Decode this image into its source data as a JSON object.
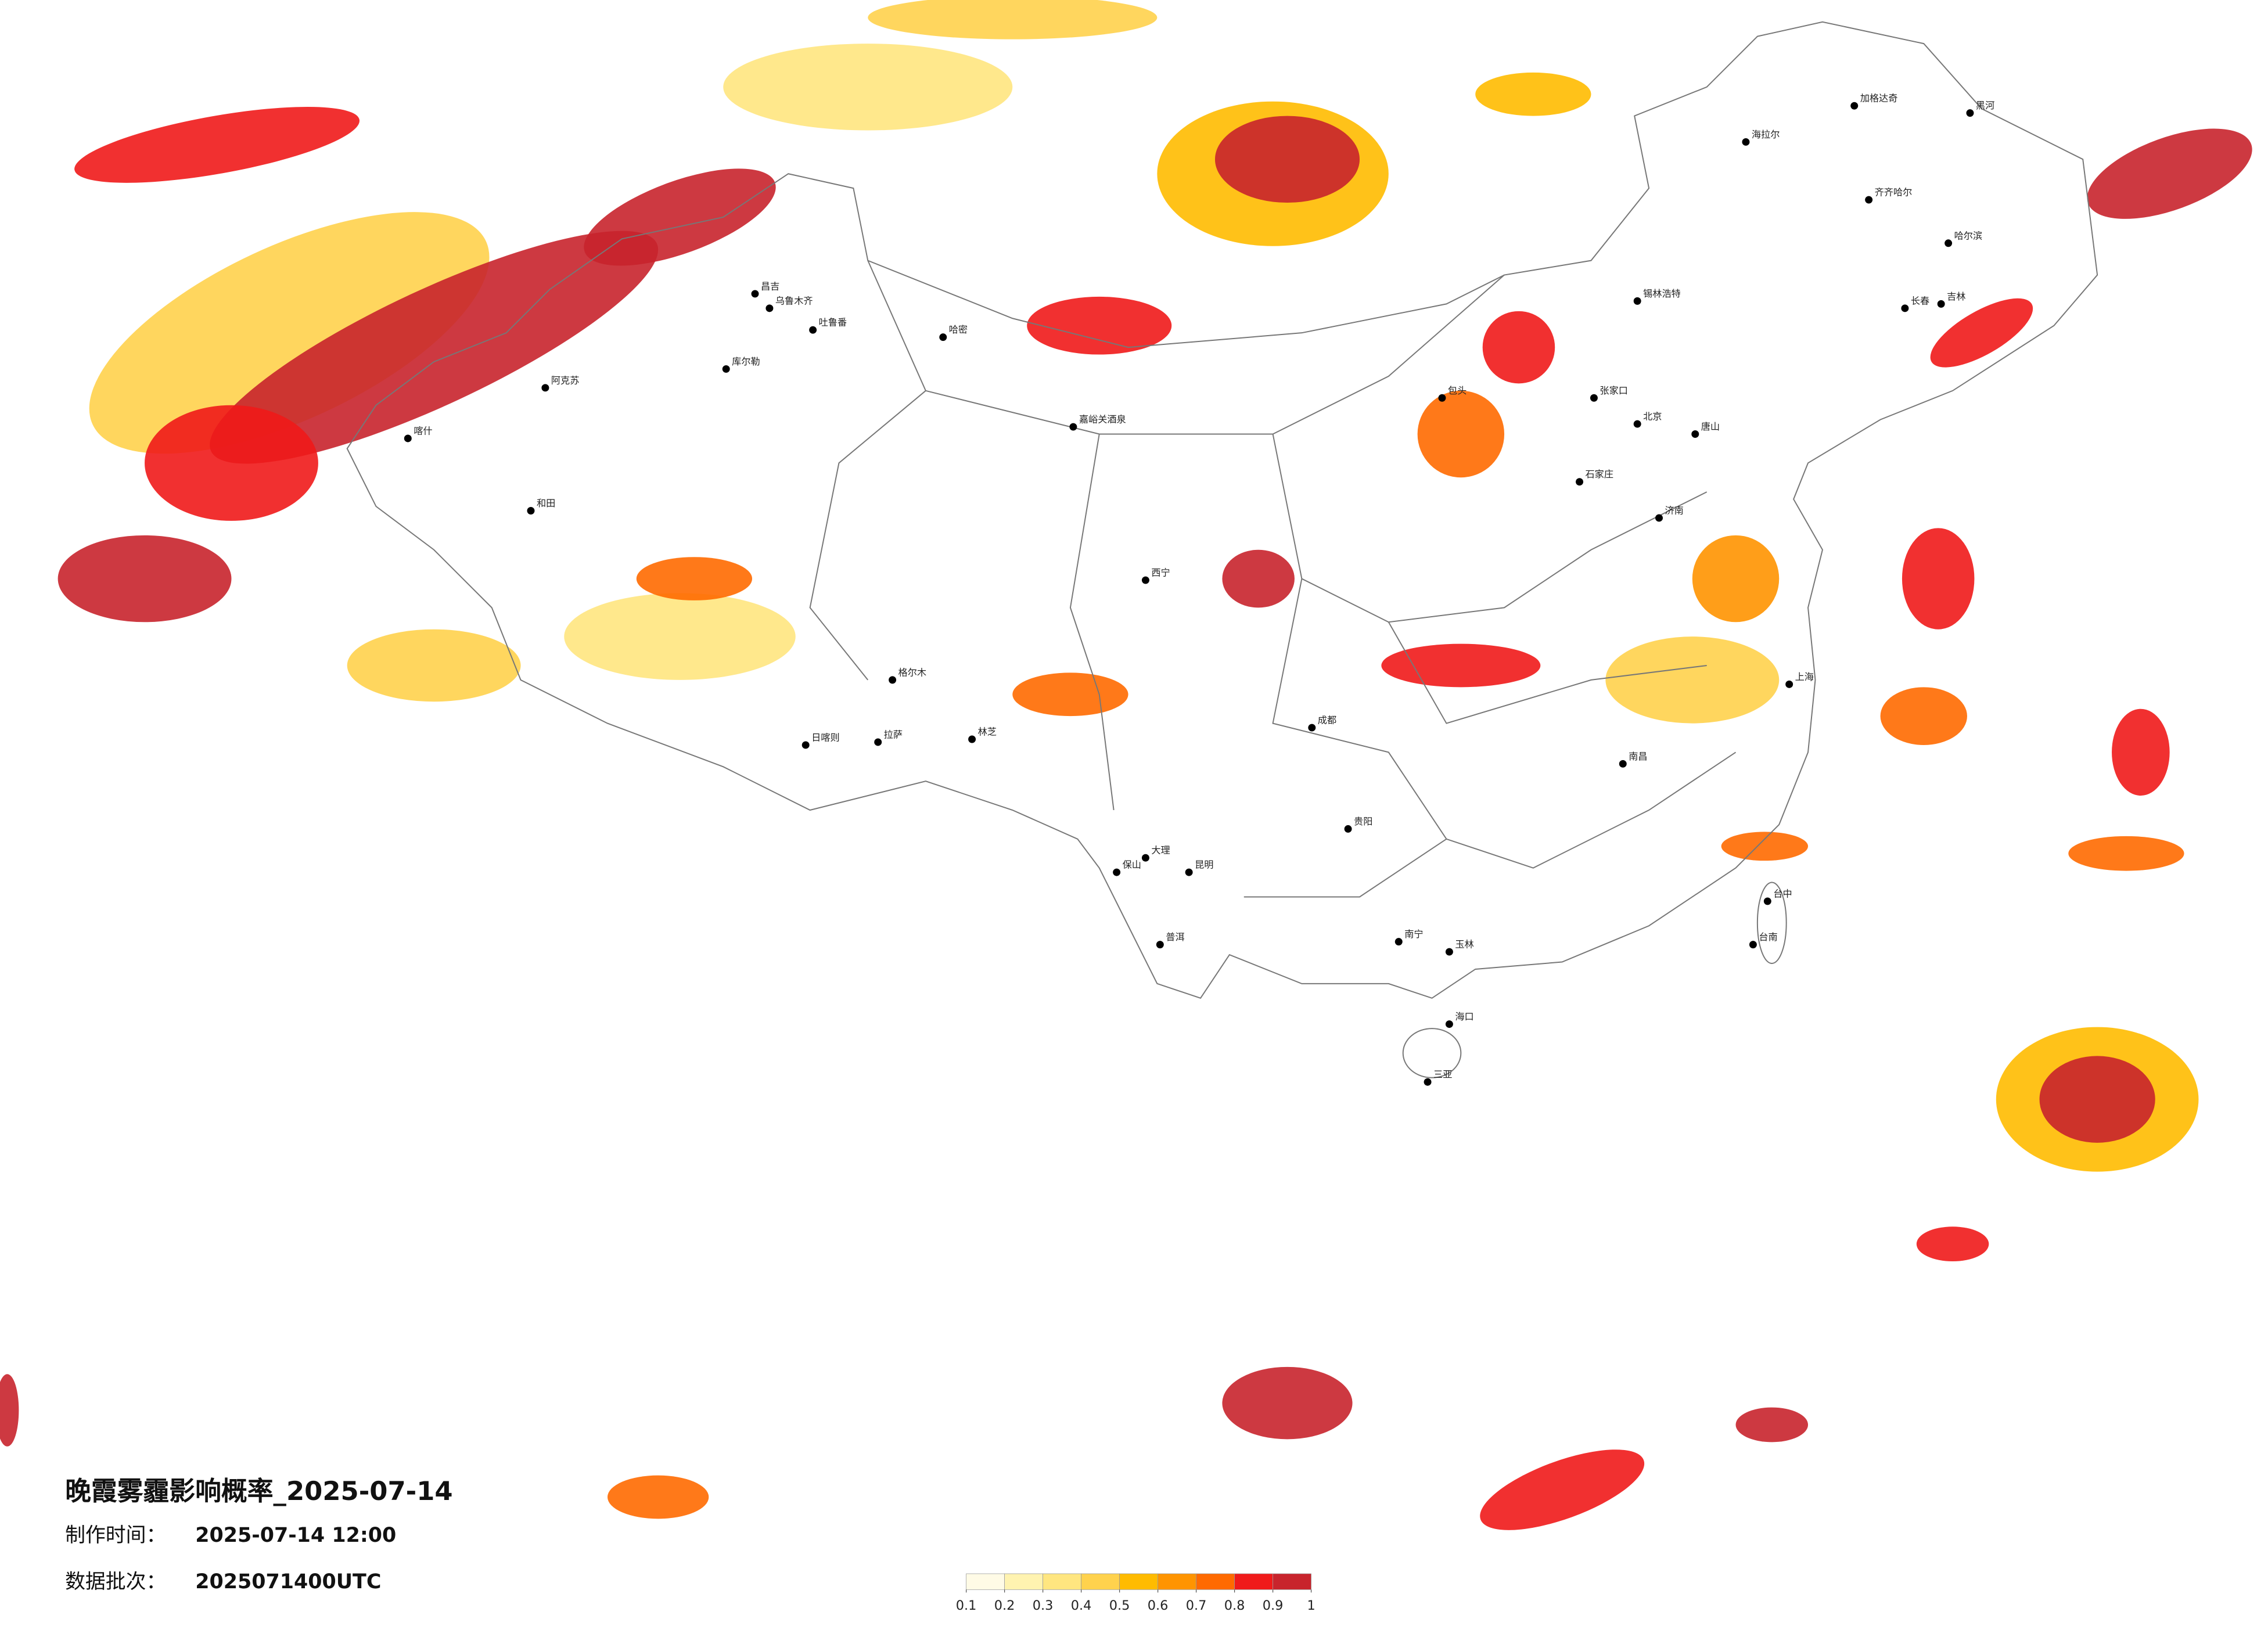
{
  "header": {
    "title": "晚霞雾霾影响概率_2025-07-14",
    "made_label": "制作时间：",
    "made_value": "2025-07-14 12:00",
    "batch_label": "数据批次：",
    "batch_value": "2025071400UTC"
  },
  "legend": {
    "ticks": [
      0.1,
      0.2,
      0.3,
      0.4,
      0.5,
      0.6,
      0.7,
      0.8,
      0.9,
      1
    ],
    "colors": [
      "#fffbe6",
      "#fff3b0",
      "#ffe680",
      "#ffd24d",
      "#ffbb00",
      "#ff9400",
      "#ff6a00",
      "#f01a1a",
      "#c8242c"
    ]
  },
  "cities": [
    "加格达奇",
    "黑河",
    "海拉尔",
    "齐齐哈尔",
    "哈尔滨",
    "长春",
    "吉林",
    "锡林浩特",
    "张家口",
    "北京",
    "唐山",
    "石家庄",
    "济南",
    "乌鲁木齐",
    "昌吉",
    "吐鲁番",
    "库尔勒",
    "阿克苏",
    "喀什",
    "和田",
    "哈密",
    "嘉峪关酒泉",
    "格尔木",
    "日喀则",
    "拉萨",
    "林芝",
    "西宁",
    "包头",
    "成都",
    "贵阳",
    "昆明",
    "大理",
    "保山",
    "普洱",
    "南宁",
    "玉林",
    "海口",
    "三亚",
    "台中",
    "台南",
    "南昌",
    "上海"
  ]
}
